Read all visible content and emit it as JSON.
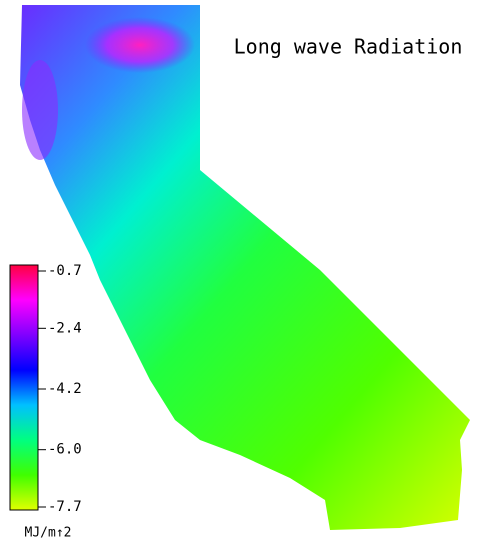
{
  "title": "Long wave Radiation",
  "colorbar": {
    "range": [
      -0.7,
      -7.7
    ],
    "ticks": [
      -0.7,
      -2.4,
      -4.2,
      {
        "value": -6,
        "label": "-6.0"
      },
      -7.7
    ],
    "colors": [
      "#ff0040",
      "#ff00ff",
      "#8000ff",
      "#0000ff",
      "#00c0ff",
      "#00ff80",
      "#40ff00",
      "#e0ff00"
    ],
    "unit": "MJ/m↑2"
  }
}
